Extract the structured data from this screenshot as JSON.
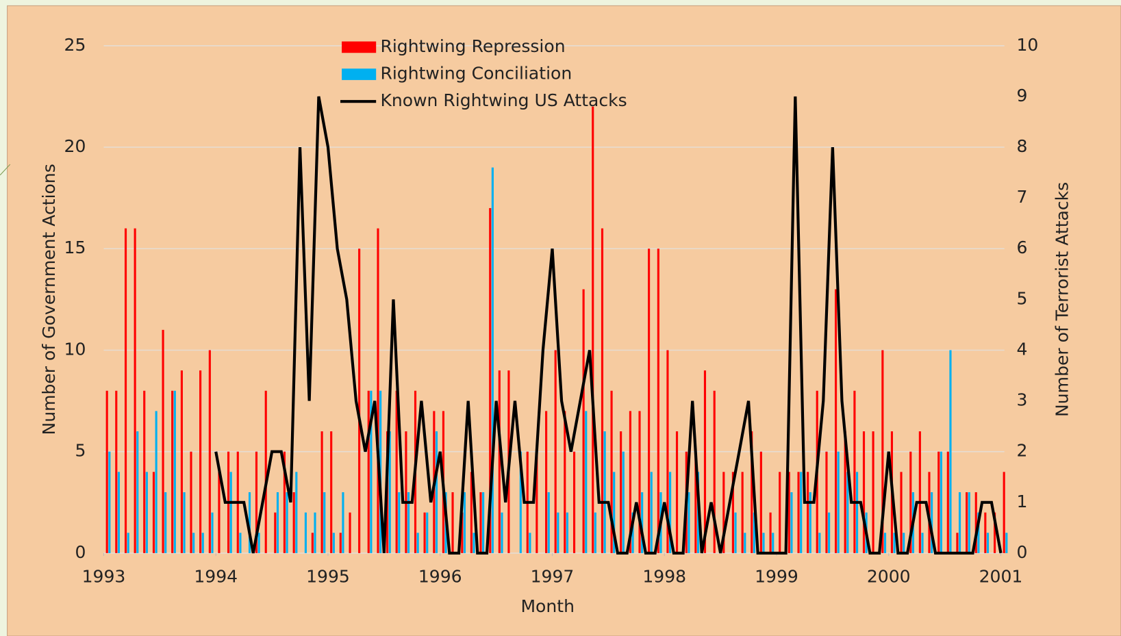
{
  "chart_data": {
    "type": "bar",
    "x_label": "Month",
    "y_label": "Number of Government Actions",
    "y2_label": "Number of Terrorist Attacks",
    "xlim": [
      1993,
      2001
    ],
    "xticks": [
      1993,
      1994,
      1995,
      1996,
      1997,
      1998,
      1999,
      2000,
      2001
    ],
    "ylim": [
      0,
      25
    ],
    "yticks": [
      0,
      5,
      10,
      15,
      20,
      25
    ],
    "y2lim": [
      0,
      10
    ],
    "y2ticks": [
      0,
      1,
      2,
      3,
      4,
      5,
      6,
      7,
      8,
      9,
      10
    ],
    "grid": true,
    "legend": "top",
    "x": [
      1993,
      1993.083,
      1993.167,
      1993.25,
      1993.333,
      1993.417,
      1993.5,
      1993.583,
      1993.667,
      1993.75,
      1993.833,
      1993.917,
      1994,
      1994.083,
      1994.167,
      1994.25,
      1994.333,
      1994.417,
      1994.5,
      1994.583,
      1994.667,
      1994.75,
      1994.833,
      1994.917,
      1995,
      1995.083,
      1995.167,
      1995.25,
      1995.333,
      1995.417,
      1995.5,
      1995.583,
      1995.667,
      1995.75,
      1995.833,
      1995.917,
      1996,
      1996.083,
      1996.167,
      1996.25,
      1996.333,
      1996.417,
      1996.5,
      1996.583,
      1996.667,
      1996.75,
      1996.833,
      1996.917,
      1997,
      1997.083,
      1997.167,
      1997.25,
      1997.333,
      1997.417,
      1997.5,
      1997.583,
      1997.667,
      1997.75,
      1997.833,
      1997.917,
      1998,
      1998.083,
      1998.167,
      1998.25,
      1998.333,
      1998.417,
      1998.5,
      1998.583,
      1998.667,
      1998.75,
      1998.833,
      1998.917,
      1999,
      1999.083,
      1999.167,
      1999.25,
      1999.333,
      1999.417,
      1999.5,
      1999.583,
      1999.667,
      1999.75,
      1999.833,
      1999.917,
      2000,
      2000.083,
      2000.167,
      2000.25,
      2000.333,
      2000.417,
      2000.5,
      2000.583,
      2000.667,
      2000.75,
      2000.833,
      2000.917,
      2001
    ],
    "series": [
      {
        "name": "Rightwing Repression",
        "color": "#ff0000",
        "kind": "bar",
        "offset": 0,
        "values": [
          8,
          8,
          16,
          16,
          8,
          4,
          11,
          8,
          9,
          5,
          9,
          10,
          4,
          5,
          5,
          0,
          5,
          8,
          2,
          5,
          3,
          0,
          1,
          6,
          6,
          1,
          2,
          15,
          8,
          16,
          6,
          8,
          6,
          8,
          2,
          7,
          7,
          3,
          2,
          4,
          3,
          17,
          9,
          9,
          0,
          5,
          5,
          7,
          10,
          7,
          5,
          13,
          22,
          16,
          8,
          6,
          7,
          7,
          15,
          15,
          10,
          6,
          5,
          5,
          9,
          8,
          4,
          4,
          4,
          6,
          5,
          2,
          4,
          4,
          4,
          4,
          8,
          5,
          13,
          6,
          8,
          6,
          6,
          10,
          6,
          4,
          5,
          6,
          4,
          5,
          5,
          1,
          3,
          3,
          2,
          2,
          4
        ]
      },
      {
        "name": "Rightwing Conciliation",
        "color": "#00b0f0",
        "kind": "bar",
        "offset": 1,
        "values": [
          5,
          4,
          1,
          6,
          4,
          7,
          3,
          8,
          3,
          1,
          1,
          2,
          0,
          4,
          1,
          3,
          1,
          0,
          3,
          3,
          4,
          2,
          2,
          3,
          1,
          3,
          0,
          0,
          8,
          8,
          6,
          3,
          3,
          1,
          2,
          6,
          3,
          0,
          3,
          1,
          3,
          19,
          2,
          0,
          5,
          1,
          0,
          3,
          2,
          2,
          0,
          7,
          2,
          6,
          4,
          5,
          2,
          3,
          4,
          3,
          4,
          0,
          3,
          4,
          0,
          0,
          0,
          2,
          1,
          2,
          1,
          1,
          0,
          3,
          4,
          3,
          1,
          2,
          5,
          4,
          4,
          2,
          0,
          1,
          1,
          1,
          3,
          1,
          3,
          5,
          10,
          3,
          3,
          2,
          1,
          0,
          1
        ]
      },
      {
        "name": "Known Rightwing US Attacks",
        "color": "#000000",
        "kind": "line",
        "axis": "y2",
        "values": [
          null,
          null,
          null,
          null,
          null,
          null,
          null,
          null,
          null,
          null,
          null,
          null,
          2,
          1,
          1,
          1,
          0,
          1,
          2,
          2,
          1,
          8,
          3,
          9,
          8,
          6,
          5,
          3,
          2,
          3,
          0,
          5,
          1,
          1,
          3,
          1,
          2,
          0,
          0,
          3,
          0,
          0,
          3,
          1,
          3,
          1,
          1,
          4,
          6,
          3,
          2,
          3,
          4,
          1,
          1,
          0,
          0,
          1,
          0,
          0,
          1,
          0,
          0,
          3,
          0,
          1,
          0,
          1,
          2,
          3,
          0,
          0,
          0,
          0,
          9,
          1,
          1,
          3,
          8,
          3,
          1,
          1,
          0,
          0,
          2,
          0,
          0,
          1,
          1,
          0,
          0,
          0,
          0,
          0,
          1,
          1,
          0
        ]
      }
    ]
  }
}
